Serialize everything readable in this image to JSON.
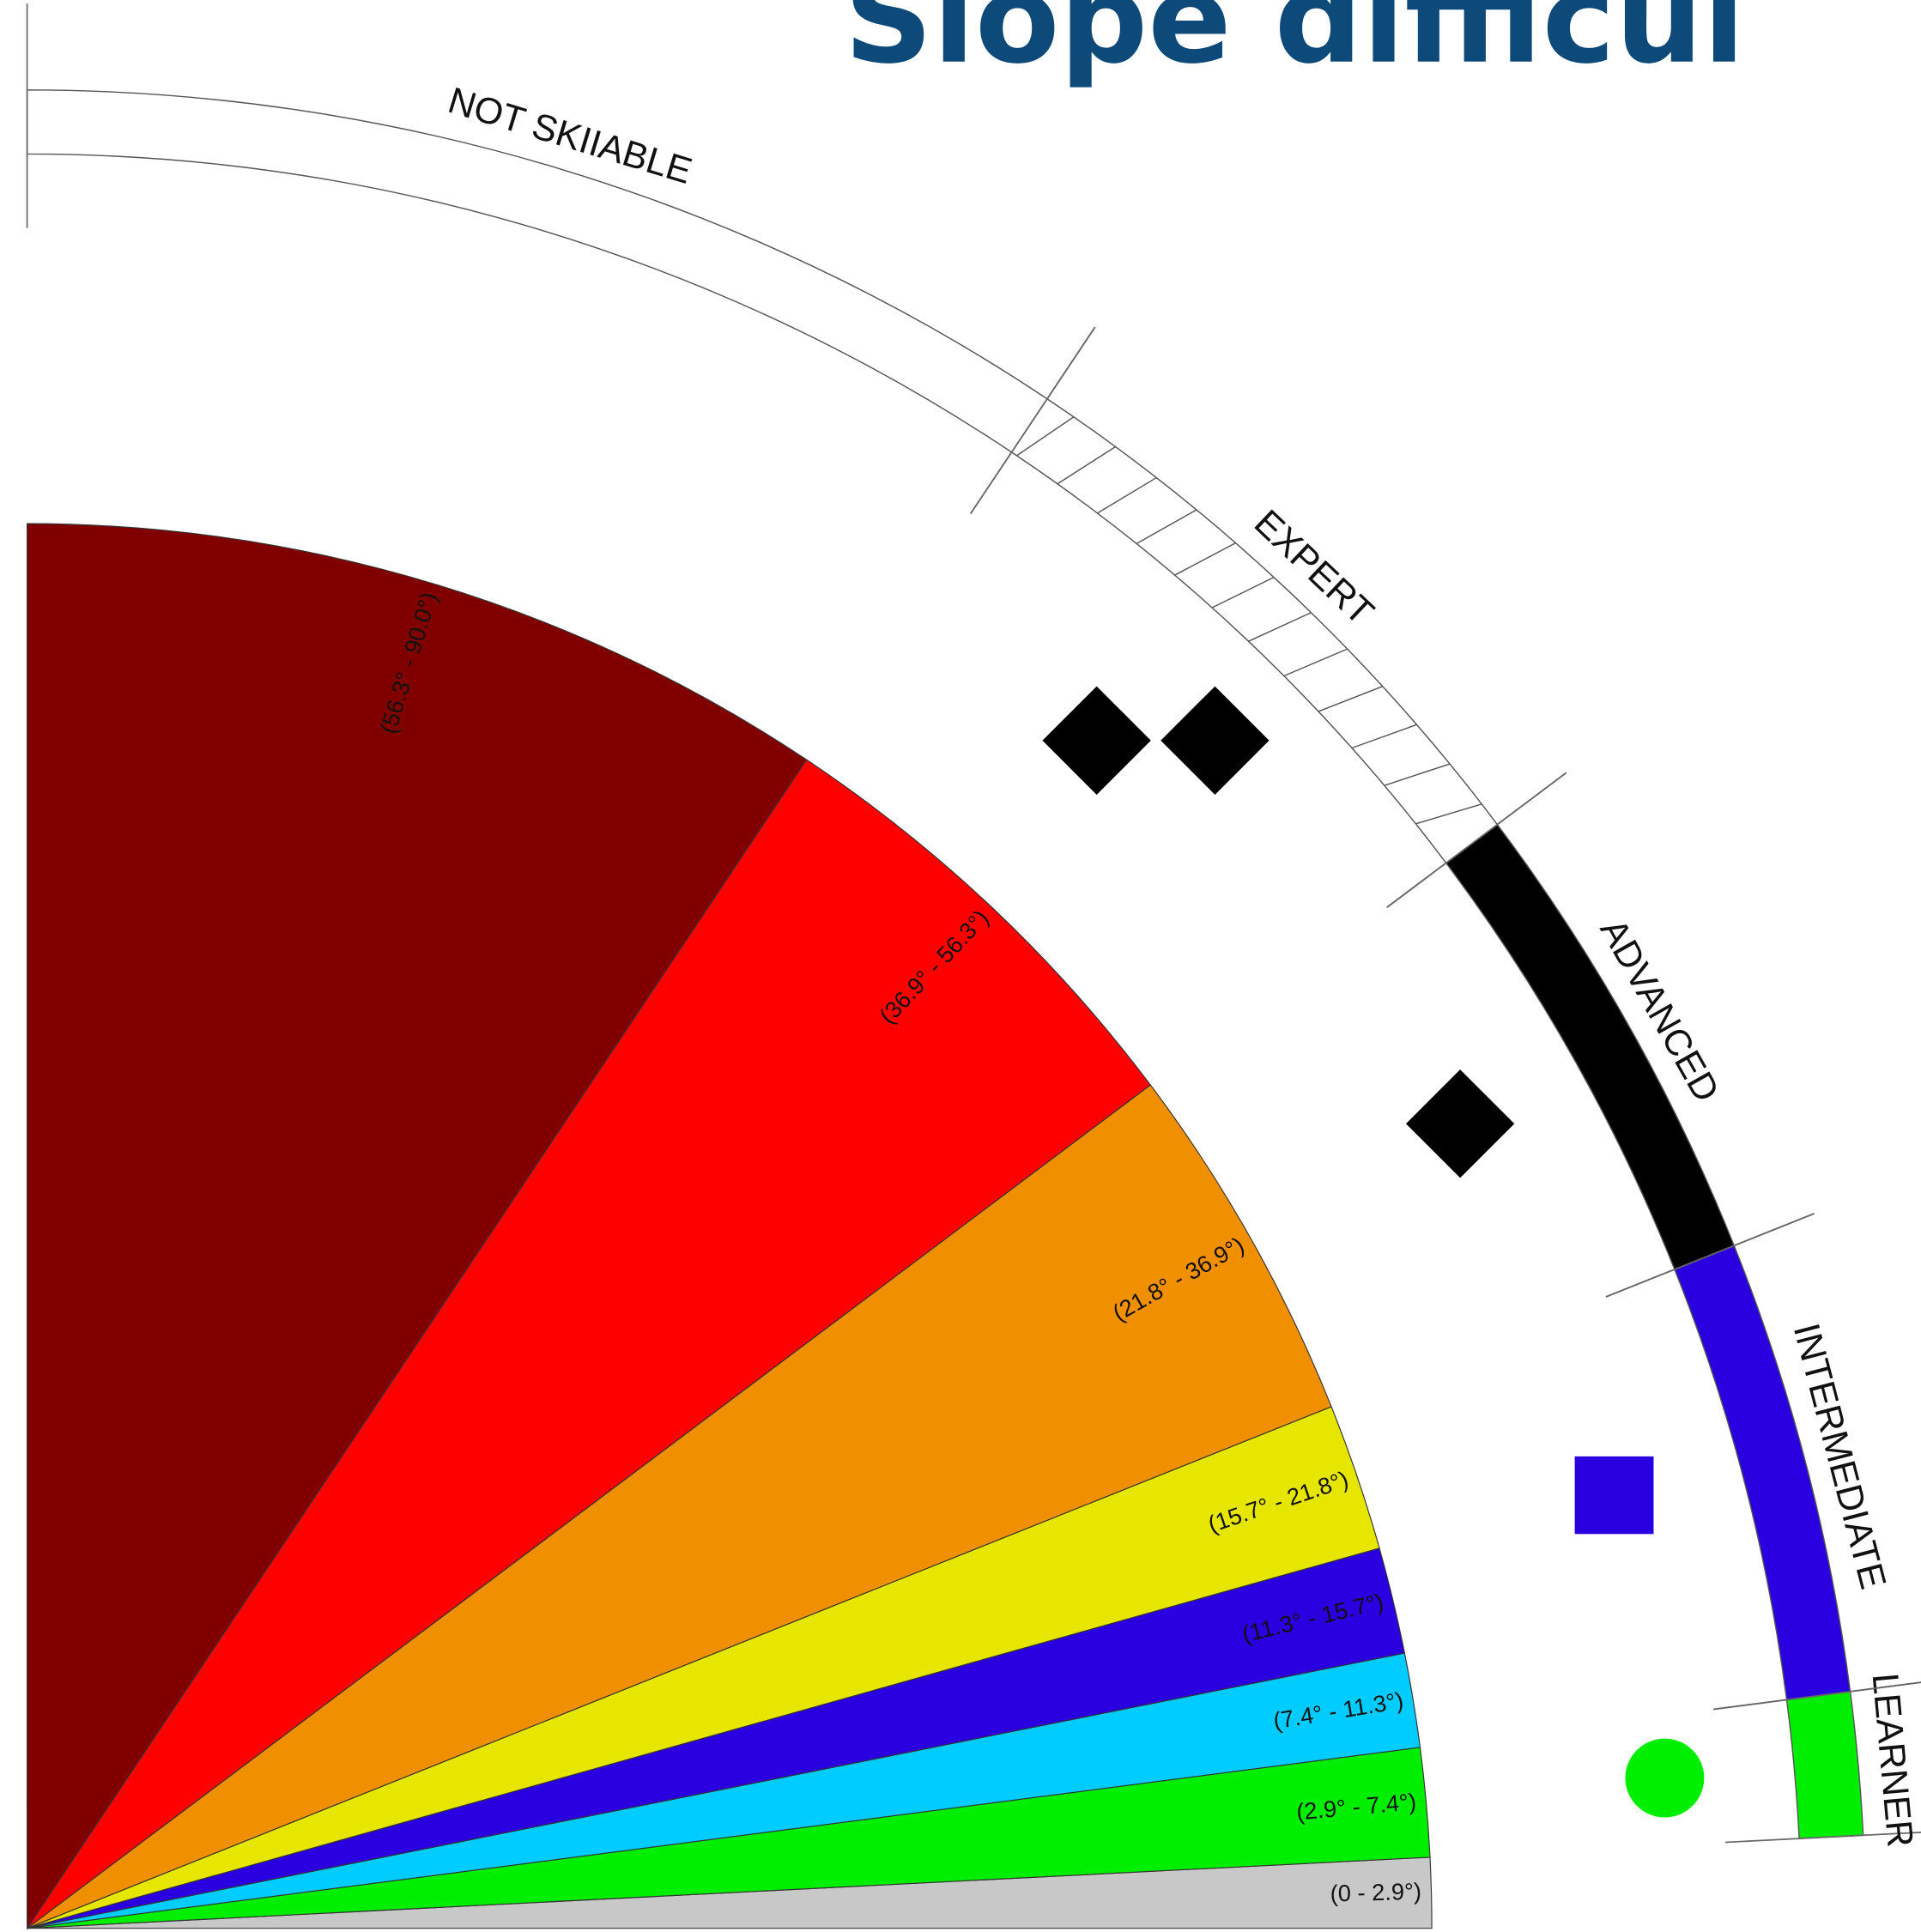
{
  "title": "Slope difficul",
  "wedges": [
    {
      "label": "(0 - 2.9°)",
      "from": 0,
      "to": 2.9,
      "color": "#c8c8c8"
    },
    {
      "label": "(2.9° - 7.4°)",
      "from": 2.9,
      "to": 7.4,
      "color": "#00ee00"
    },
    {
      "label": "(7.4° - 11.3°)",
      "from": 7.4,
      "to": 11.3,
      "color": "#00ccff"
    },
    {
      "label": "(11.3° - 15.7°)",
      "from": 11.3,
      "to": 15.7,
      "color": "#2a00e0"
    },
    {
      "label": "(15.7° - 21.8°)",
      "from": 15.7,
      "to": 21.8,
      "color": "#e6e600"
    },
    {
      "label": "(21.8° - 36.9°)",
      "from": 21.8,
      "to": 36.9,
      "color": "#f09000"
    },
    {
      "label": "(36.9° - 56.3°)",
      "from": 36.9,
      "to": 56.3,
      "color": "#ff0000"
    },
    {
      "label": "(56.3° - 90.0°)",
      "from": 56.3,
      "to": 90,
      "color": "#800000"
    }
  ],
  "bands": [
    {
      "label": "LEARNER",
      "from": 2.9,
      "to": 7.4,
      "color": "#00ee00"
    },
    {
      "label": "INTERMEDIATE",
      "from": 7.4,
      "to": 21.8,
      "color": "#2a00e0"
    },
    {
      "label": "ADVANCED",
      "from": 21.8,
      "to": 36.9,
      "color": "#000000"
    },
    {
      "label": "EXPERT",
      "from": 36.9,
      "to": 56.3,
      "color": "#ffffff",
      "pattern": "hatch"
    },
    {
      "label": "NOT SKIIABLE",
      "from": 56.3,
      "to": 90,
      "color": "#ffffff"
    }
  ]
}
